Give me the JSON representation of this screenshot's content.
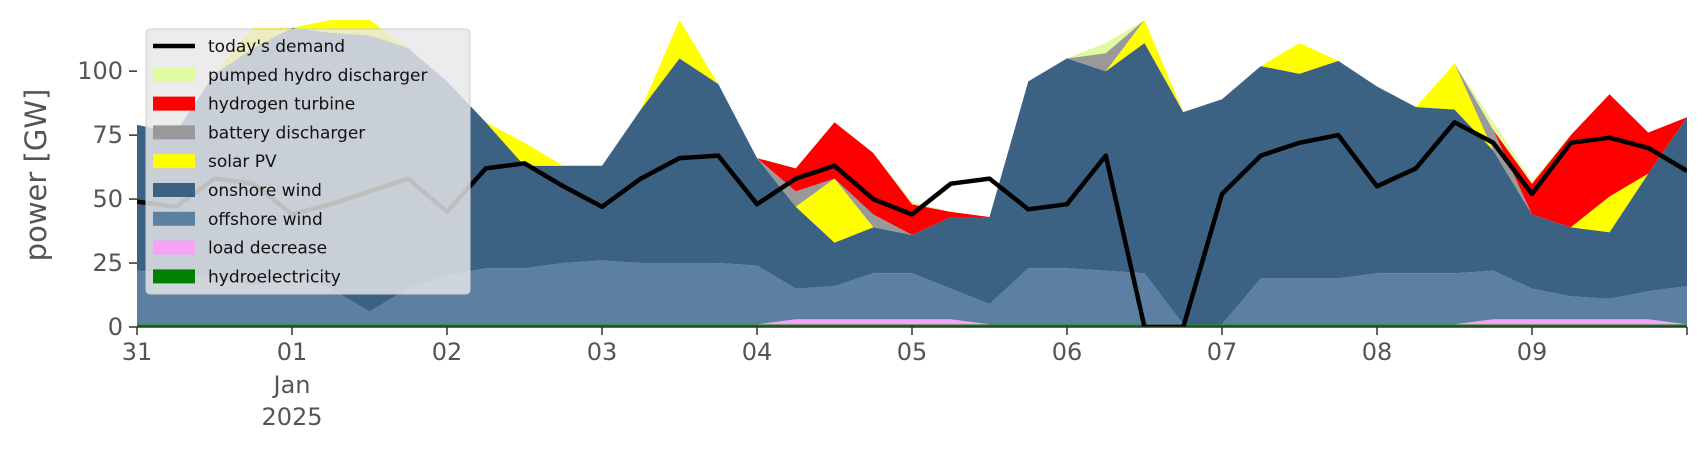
{
  "chart_data": {
    "type": "area",
    "title": "",
    "xlabel": "",
    "ylabel": "power [GW]",
    "ylim": [
      0,
      120
    ],
    "xlim": [
      "2024-12-31 00:00",
      "2025-01-10 00:00"
    ],
    "grid": false,
    "legend_position": "top-left",
    "y_ticks": [
      "0",
      "25",
      "50",
      "75",
      "100"
    ],
    "x_ticks": [
      {
        "date": "2024-12-31",
        "label": "31"
      },
      {
        "date": "2025-01-01",
        "label": "01",
        "sublabels": [
          "Jan",
          "2025"
        ]
      },
      {
        "date": "2025-01-02",
        "label": "02"
      },
      {
        "date": "2025-01-03",
        "label": "03"
      },
      {
        "date": "2025-01-04",
        "label": "04"
      },
      {
        "date": "2025-01-05",
        "label": "05"
      },
      {
        "date": "2025-01-06",
        "label": "06"
      },
      {
        "date": "2025-01-07",
        "label": "07"
      },
      {
        "date": "2025-01-08",
        "label": "08"
      },
      {
        "date": "2025-01-09",
        "label": "09"
      },
      {
        "date": "2025-01-10",
        "label": ""
      }
    ],
    "x": [
      "2024-12-31 00:00",
      "2024-12-31 06:00",
      "2024-12-31 12:00",
      "2024-12-31 18:00",
      "2025-01-01 00:00",
      "2025-01-01 06:00",
      "2025-01-01 12:00",
      "2025-01-01 18:00",
      "2025-01-02 00:00",
      "2025-01-02 06:00",
      "2025-01-02 12:00",
      "2025-01-02 18:00",
      "2025-01-03 00:00",
      "2025-01-03 06:00",
      "2025-01-03 12:00",
      "2025-01-03 18:00",
      "2025-01-04 00:00",
      "2025-01-04 06:00",
      "2025-01-04 12:00",
      "2025-01-04 18:00",
      "2025-01-05 00:00",
      "2025-01-05 06:00",
      "2025-01-05 12:00",
      "2025-01-05 18:00",
      "2025-01-06 00:00",
      "2025-01-06 06:00",
      "2025-01-06 12:00",
      "2025-01-06 18:00",
      "2025-01-07 00:00",
      "2025-01-07 06:00",
      "2025-01-07 12:00",
      "2025-01-07 18:00",
      "2025-01-08 00:00",
      "2025-01-08 06:00",
      "2025-01-08 12:00",
      "2025-01-08 18:00",
      "2025-01-09 00:00",
      "2025-01-09 06:00",
      "2025-01-09 12:00",
      "2025-01-09 18:00",
      "2025-01-10 00:00"
    ],
    "series": [
      {
        "name": "hydroelectricity",
        "color": "#008000",
        "values": [
          1,
          1,
          1,
          1,
          1,
          1,
          1,
          1,
          1,
          1,
          1,
          1,
          1,
          1,
          1,
          1,
          1,
          1,
          1,
          1,
          1,
          1,
          1,
          1,
          1,
          1,
          1,
          1,
          1,
          1,
          1,
          1,
          1,
          1,
          1,
          1,
          1,
          1,
          1,
          1,
          1
        ]
      },
      {
        "name": "load decrease",
        "color": "#f7a1f7",
        "values": [
          0,
          0,
          0,
          0,
          0,
          0,
          0,
          0,
          0,
          0,
          0,
          0,
          0,
          0,
          0,
          0,
          0,
          2,
          2,
          2,
          2,
          2,
          0,
          0,
          0,
          0,
          0,
          0,
          0,
          0,
          0,
          0,
          0,
          0,
          0,
          2,
          2,
          2,
          2,
          2,
          0
        ]
      },
      {
        "name": "offshore wind",
        "color": "#5b80a1",
        "values": [
          21,
          20,
          18,
          15,
          19,
          14,
          5,
          14,
          19,
          22,
          22,
          24,
          25,
          24,
          24,
          24,
          23,
          12,
          13,
          18,
          18,
          12,
          8,
          22,
          22,
          21,
          20,
          0,
          0,
          18,
          18,
          18,
          20,
          20,
          20,
          19,
          12,
          9,
          8,
          11,
          15
        ]
      },
      {
        "name": "onshore wind",
        "color": "#3c6283",
        "values": [
          57,
          55,
          80,
          93,
          97,
          100,
          108,
          94,
          76,
          57,
          40,
          38,
          37,
          60,
          80,
          70,
          42,
          32,
          17,
          18,
          15,
          28,
          34,
          73,
          82,
          78,
          90,
          83,
          88,
          83,
          80,
          85,
          73,
          65,
          64,
          47,
          29,
          27,
          26,
          46,
          66
        ]
      },
      {
        "name": "solar PV",
        "color": "#ffff00",
        "values": [
          0,
          0,
          0,
          8,
          0,
          10,
          14,
          0,
          0,
          0,
          9,
          0,
          0,
          0,
          22,
          0,
          0,
          0,
          25,
          0,
          0,
          0,
          0,
          0,
          0,
          0,
          22,
          0,
          0,
          0,
          12,
          0,
          0,
          0,
          18,
          0,
          0,
          0,
          14,
          0,
          0
        ]
      },
      {
        "name": "battery discharger",
        "color": "#999999",
        "values": [
          0,
          0,
          0,
          0,
          0,
          0,
          0,
          0,
          0,
          0,
          0,
          0,
          0,
          0,
          0,
          0,
          0,
          6,
          0,
          5,
          0,
          0,
          0,
          0,
          0,
          7,
          0,
          0,
          0,
          0,
          0,
          0,
          0,
          0,
          0,
          8,
          0,
          0,
          0,
          0,
          0
        ]
      },
      {
        "name": "hydrogen turbine",
        "color": "#ff0000",
        "values": [
          0,
          0,
          0,
          0,
          0,
          0,
          0,
          0,
          0,
          0,
          0,
          0,
          0,
          0,
          0,
          0,
          0,
          9,
          22,
          24,
          12,
          2,
          0,
          0,
          0,
          0,
          0,
          0,
          0,
          0,
          0,
          0,
          0,
          0,
          0,
          0,
          12,
          36,
          40,
          16,
          0
        ]
      },
      {
        "name": "pumped hydro discharger",
        "color": "#dffa9f",
        "values": [
          0,
          0,
          0,
          0,
          0,
          0,
          0,
          0,
          0,
          0,
          0,
          0,
          0,
          0,
          0,
          0,
          0,
          0,
          0,
          0,
          1,
          0,
          0,
          0,
          0,
          4,
          0,
          0,
          0,
          0,
          0,
          0,
          0,
          0,
          0,
          3,
          1,
          0,
          0,
          0,
          0
        ]
      }
    ],
    "demand": {
      "name": "today's demand",
      "color": "#000000",
      "values": [
        49,
        47,
        58,
        56,
        44,
        48,
        53,
        58,
        45,
        62,
        64,
        55,
        47,
        58,
        66,
        67,
        48,
        58,
        63,
        50,
        44,
        56,
        58,
        46,
        48,
        67,
        0,
        0,
        52,
        67,
        72,
        75,
        55,
        62,
        80,
        72,
        52,
        72,
        74,
        70,
        61
      ]
    },
    "legend_order": [
      "today's demand",
      "pumped hydro discharger",
      "hydrogen turbine",
      "battery discharger",
      "solar PV",
      "onshore wind",
      "offshore wind",
      "load decrease",
      "hydroelectricity"
    ]
  }
}
